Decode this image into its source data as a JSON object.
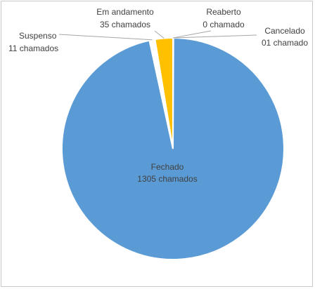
{
  "chart_data": {
    "type": "pie",
    "slices": [
      {
        "category": "Fechado",
        "value": 1305,
        "label": "1305 chamados",
        "color": "#5b9bd5"
      },
      {
        "category": "Suspenso",
        "value": 11,
        "label": "11 chamados",
        "color": "#ffffff"
      },
      {
        "category": "Em andamento",
        "value": 35,
        "label": "35 chamados",
        "color": "#ffc000"
      },
      {
        "category": "Reaberto",
        "value": 0,
        "label": "0 chamado",
        "color": "#a5a5a5"
      },
      {
        "category": "Cancelado",
        "value": 1,
        "label": "01 chamado",
        "color": "#70ad47"
      }
    ],
    "title": "",
    "legend": "none",
    "data_labels": "category and value"
  }
}
